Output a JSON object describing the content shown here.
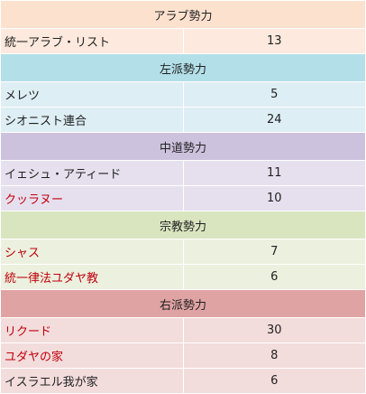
{
  "groups": [
    {
      "heading": "アラブ勢力",
      "header_color": "#fde1cf",
      "row_color": "#fde9dd",
      "rows": [
        {
          "name": "統一アラブ・リスト",
          "seats": "13",
          "highlight": false
        }
      ]
    },
    {
      "heading": "左派勢力",
      "header_color": "#b3dfe8",
      "row_color": "#ddeef4",
      "rows": [
        {
          "name": "メレツ",
          "seats": "5",
          "highlight": false
        },
        {
          "name": "シオニスト連合",
          "seats": "24",
          "highlight": false
        }
      ]
    },
    {
      "heading": "中道勢力",
      "header_color": "#cdc2dd",
      "row_color": "#e6e0ee",
      "rows": [
        {
          "name": "イェシュ・アティード",
          "seats": "11",
          "highlight": false
        },
        {
          "name": "クッラヌー",
          "seats": "10",
          "highlight": true
        }
      ]
    },
    {
      "heading": "宗教勢力",
      "header_color": "#d8e5bf",
      "row_color": "#ebf1de",
      "rows": [
        {
          "name": "シャス",
          "seats": "7",
          "highlight": true
        },
        {
          "name": "統一律法ユダヤ教",
          "seats": "6",
          "highlight": true
        }
      ]
    },
    {
      "heading": "右派勢力",
      "header_color": "#e0a3a3",
      "row_color": "#f3dcdc",
      "rows": [
        {
          "name": "リクード",
          "seats": "30",
          "highlight": true
        },
        {
          "name": "ユダヤの家",
          "seats": "8",
          "highlight": true
        },
        {
          "name": "イスラエル我が家",
          "seats": "6",
          "highlight": false
        }
      ]
    }
  ]
}
